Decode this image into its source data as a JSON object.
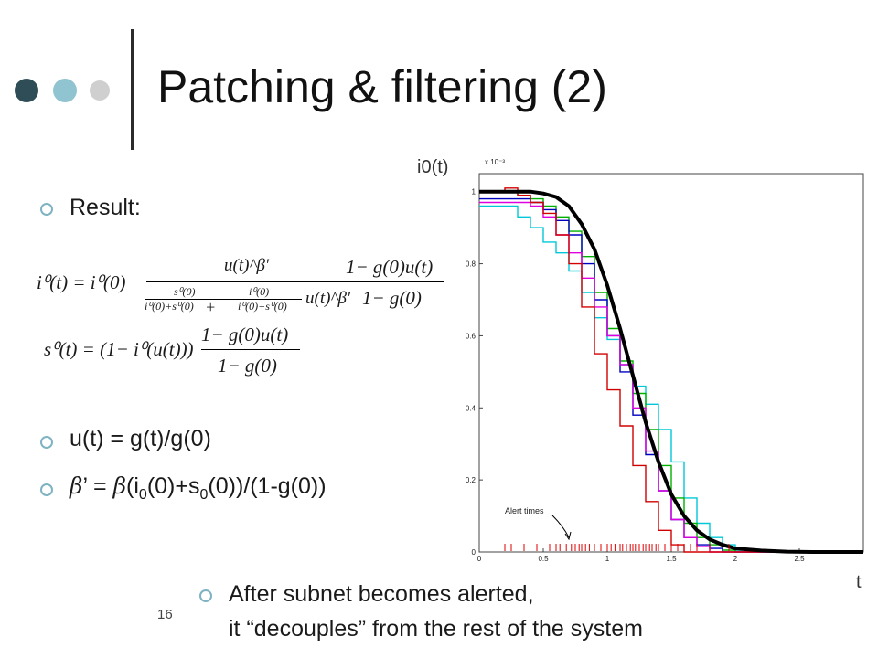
{
  "slide": {
    "title": "Patching & filtering (2)",
    "page_number": "16",
    "accent_dots": [
      "#2e4d57",
      "#8fc4d0",
      "#cfcfcf"
    ]
  },
  "bullets": {
    "result": "Result:",
    "u_def": "u(t) = g(t)/g(0)",
    "beta_def": {
      "b1": "β",
      "eq": "’ = ",
      "b2": "β",
      "p1": "(i",
      "s1": "0",
      "p2": "(0)+s",
      "s2": "0",
      "p3": "(0))/(1-g(0))"
    },
    "decouple_line1": "After subnet becomes alerted,",
    "decouple_line2": "it “decouples” from the rest of the system"
  },
  "formula": {
    "eq1": {
      "lhs": "i⁰(t) = i⁰(0)",
      "num": "u(t)^β′",
      "den_a_num": "s⁰(0)",
      "den_a_den": "i⁰(0)+s⁰(0)",
      "plus": "+",
      "den_b_num": "i⁰(0)",
      "den_b_den": "i⁰(0)+s⁰(0)",
      "den_tail": "u(t)^β′",
      "r_num": "1− g(0)u(t)",
      "r_den": "1− g(0)"
    },
    "eq2": {
      "lhs": "s⁰(t) = (1− i⁰(u(t)))",
      "r_num": "1− g(0)u(t)",
      "r_den": "1− g(0)"
    }
  },
  "chart_data": {
    "type": "line",
    "ylabel": "i0(t)",
    "xlabel": "t",
    "y_multiplier": "x 10⁻³",
    "xlim": [
      0,
      3.0
    ],
    "ylim": [
      0,
      1.05
    ],
    "xticks": [
      "0",
      "0.5",
      "1",
      "1.5",
      "2",
      "2.5"
    ],
    "xtick_values": [
      0,
      0.5,
      1,
      1.5,
      2,
      2.5
    ],
    "yticks": [
      "0",
      "0.2",
      "0.4",
      "0.6",
      "0.8",
      "1"
    ],
    "ytick_values": [
      0,
      0.2,
      0.4,
      0.6,
      0.8,
      1
    ],
    "annotation": "Alert times",
    "series": [
      {
        "color": "#000000",
        "x": [
          0,
          0.1,
          0.2,
          0.3,
          0.4,
          0.5,
          0.6,
          0.7,
          0.8,
          0.9,
          1.0,
          1.1,
          1.2,
          1.3,
          1.4,
          1.5,
          1.6,
          1.7,
          1.8,
          1.9,
          2.0,
          2.2,
          2.4,
          2.6,
          2.8,
          3.0
        ],
        "y": [
          1.0,
          1.0,
          1.0,
          1.0,
          1.0,
          0.995,
          0.985,
          0.96,
          0.91,
          0.84,
          0.74,
          0.62,
          0.49,
          0.36,
          0.25,
          0.16,
          0.1,
          0.06,
          0.035,
          0.02,
          0.01,
          0.004,
          0.001,
          0,
          0,
          0
        ]
      },
      {
        "color": "#00c8d8",
        "x": [
          0,
          0.2,
          0.3,
          0.4,
          0.5,
          0.6,
          0.7,
          0.8,
          0.9,
          1.0,
          1.1,
          1.2,
          1.3,
          1.4,
          1.5,
          1.6,
          1.7,
          1.8,
          1.9,
          2.0,
          2.2
        ],
        "y": [
          0.96,
          0.96,
          0.93,
          0.9,
          0.86,
          0.83,
          0.78,
          0.72,
          0.65,
          0.59,
          0.52,
          0.46,
          0.41,
          0.34,
          0.25,
          0.15,
          0.08,
          0.04,
          0.02,
          0.005,
          0
        ]
      },
      {
        "color": "#00b000",
        "x": [
          0,
          0.2,
          0.3,
          0.4,
          0.5,
          0.6,
          0.7,
          0.8,
          0.9,
          1.0,
          1.1,
          1.2,
          1.3,
          1.4,
          1.5,
          1.6,
          1.7,
          1.8,
          1.9,
          2.0
        ],
        "y": [
          1.0,
          1.0,
          0.99,
          0.98,
          0.96,
          0.93,
          0.89,
          0.82,
          0.72,
          0.62,
          0.53,
          0.44,
          0.34,
          0.24,
          0.15,
          0.08,
          0.04,
          0.02,
          0.005,
          0
        ]
      },
      {
        "color": "#0000c0",
        "x": [
          0,
          0.2,
          0.3,
          0.4,
          0.5,
          0.6,
          0.7,
          0.8,
          0.9,
          1.0,
          1.1,
          1.2,
          1.3,
          1.4,
          1.5,
          1.6,
          1.7,
          1.8,
          1.9
        ],
        "y": [
          0.98,
          0.98,
          0.98,
          0.97,
          0.95,
          0.92,
          0.88,
          0.8,
          0.7,
          0.6,
          0.5,
          0.38,
          0.27,
          0.17,
          0.09,
          0.04,
          0.02,
          0.01,
          0
        ]
      },
      {
        "color": "#e000e0",
        "x": [
          0,
          0.2,
          0.3,
          0.4,
          0.5,
          0.6,
          0.7,
          0.8,
          0.9,
          1.0,
          1.1,
          1.2,
          1.3,
          1.4,
          1.5,
          1.6,
          1.7,
          1.8
        ],
        "y": [
          0.97,
          0.97,
          0.97,
          0.96,
          0.93,
          0.88,
          0.83,
          0.76,
          0.68,
          0.6,
          0.52,
          0.4,
          0.28,
          0.17,
          0.09,
          0.04,
          0.015,
          0
        ]
      },
      {
        "color": "#d00000",
        "x": [
          0,
          0.15,
          0.2,
          0.3,
          0.4,
          0.5,
          0.6,
          0.7,
          0.8,
          0.9,
          1.0,
          1.1,
          1.2,
          1.3,
          1.4,
          1.5,
          1.6
        ],
        "y": [
          1.0,
          1.0,
          1.01,
          0.99,
          0.97,
          0.94,
          0.88,
          0.8,
          0.68,
          0.55,
          0.45,
          0.35,
          0.24,
          0.14,
          0.06,
          0.02,
          0
        ]
      }
    ],
    "alert_times": [
      0.2,
      0.25,
      0.35,
      0.45,
      0.55,
      0.6,
      0.63,
      0.68,
      0.72,
      0.75,
      0.78,
      0.8,
      0.83,
      0.86,
      0.9,
      0.95,
      1.0,
      1.03,
      1.06,
      1.1,
      1.12,
      1.15,
      1.18,
      1.2,
      1.22,
      1.25,
      1.28,
      1.3,
      1.33,
      1.35,
      1.38,
      1.4,
      1.45,
      1.5,
      1.55,
      1.6,
      1.65,
      1.7,
      1.8,
      1.95
    ]
  }
}
